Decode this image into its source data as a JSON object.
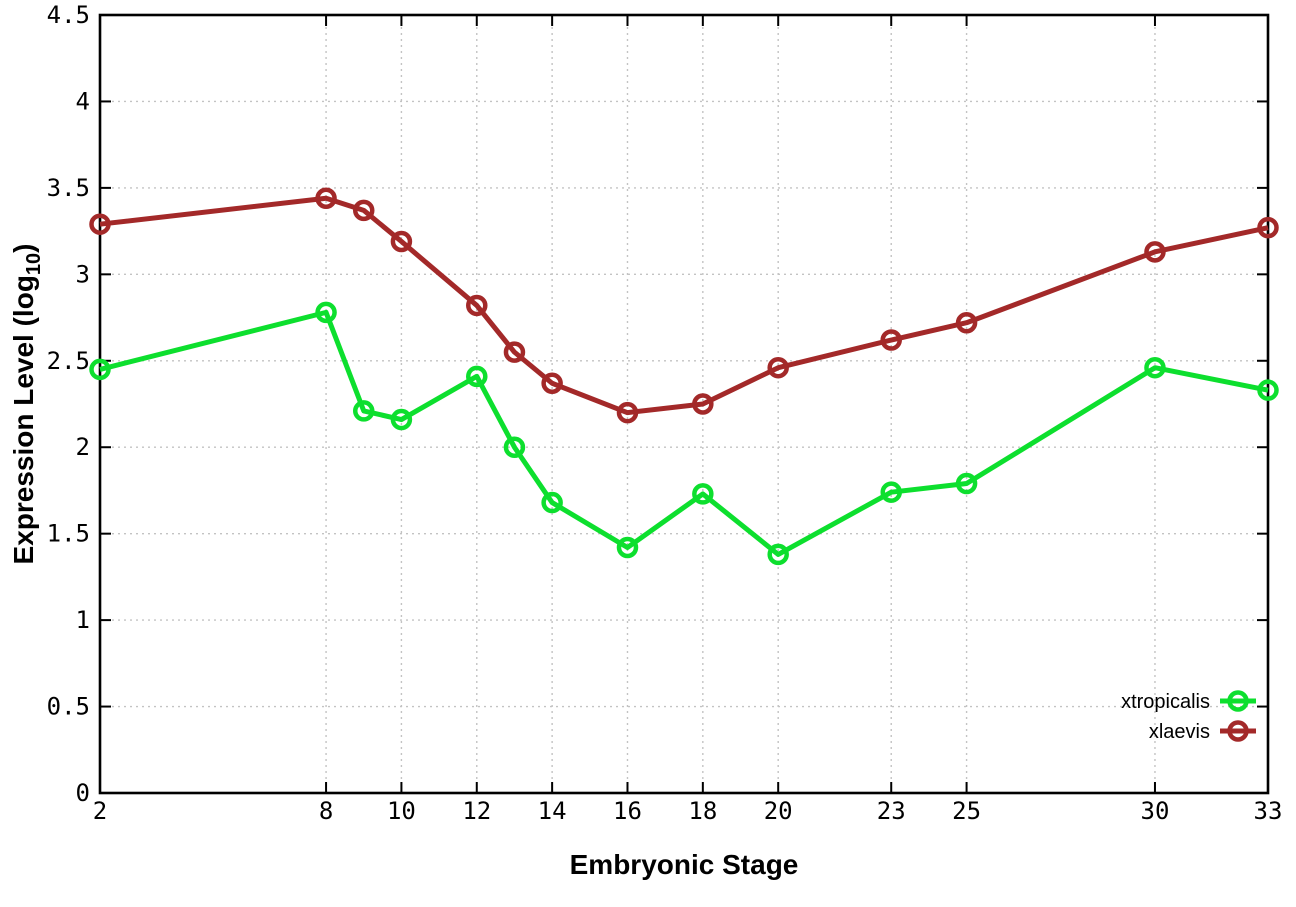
{
  "chart_data": {
    "type": "line",
    "title": "",
    "xlabel": "Embryonic Stage",
    "ylabel": "Expression Level (log10)",
    "ylabel_parts": {
      "prefix": "Expression Level (log",
      "sub": "10",
      "suffix": ")"
    },
    "xlim": [
      2,
      33
    ],
    "ylim": [
      0,
      4.5
    ],
    "grid": true,
    "legend_position": "bottom-right",
    "x_tick_values": [
      2,
      8,
      10,
      12,
      14,
      16,
      18,
      20,
      23,
      25,
      30,
      33
    ],
    "x_tick_labels": [
      "2",
      "8",
      "10",
      "12",
      "14",
      "16",
      "18",
      "20",
      "23",
      "25",
      "30",
      "33"
    ],
    "y_tick_values": [
      0,
      0.5,
      1,
      1.5,
      2,
      2.5,
      3,
      3.5,
      4,
      4.5
    ],
    "y_tick_labels": [
      "0",
      "0.5",
      "1",
      "1.5",
      "2",
      "2.5",
      "3",
      "3.5",
      "4",
      "4.5"
    ],
    "x": [
      2,
      8,
      9,
      10,
      12,
      13,
      14,
      16,
      18,
      20,
      23,
      25,
      30,
      33
    ],
    "series": [
      {
        "name": "xtropicalis",
        "color": "#0ddf2e",
        "marker": "open-circle",
        "values": [
          2.45,
          2.78,
          2.21,
          2.16,
          2.41,
          2.0,
          1.68,
          1.42,
          1.73,
          1.38,
          1.74,
          1.79,
          2.46,
          2.33
        ]
      },
      {
        "name": "xlaevis",
        "color": "#a32929",
        "marker": "open-circle",
        "values": [
          3.29,
          3.44,
          3.37,
          3.19,
          2.82,
          2.55,
          2.37,
          2.2,
          2.25,
          2.46,
          2.62,
          2.72,
          3.13,
          3.27
        ]
      }
    ],
    "colors": {
      "axis": "#000000",
      "grid": "#c3c3c3",
      "tick_text": "#000000",
      "background": "#ffffff"
    }
  }
}
